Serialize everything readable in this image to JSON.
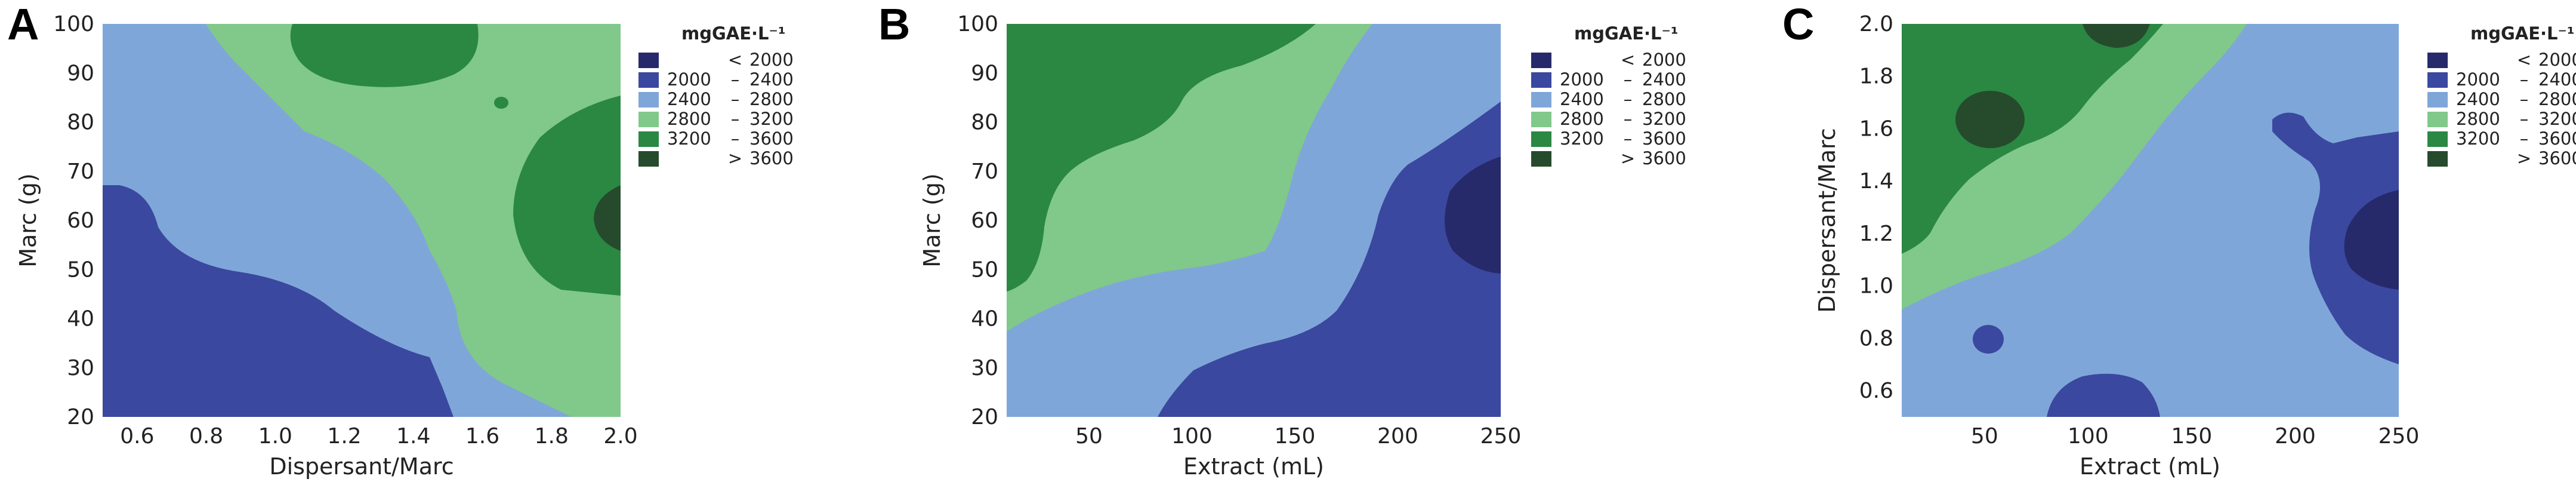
{
  "colors": {
    "lt2000": "#262a6b",
    "b2000_2400": "#3a48a0",
    "b2400_2800": "#7fa6d8",
    "b2800_3200": "#80c98a",
    "b3200_3600": "#2a8843",
    "gt3600": "#264b2c"
  },
  "legend": {
    "title": "mgGAE·L⁻¹",
    "entries": [
      {
        "lo": "",
        "sep": "<",
        "hi": "2000",
        "color": "#262a6b"
      },
      {
        "lo": "2000",
        "sep": "–",
        "hi": "2400",
        "color": "#3a48a0"
      },
      {
        "lo": "2400",
        "sep": "–",
        "hi": "2800",
        "color": "#7fa6d8"
      },
      {
        "lo": "2800",
        "sep": "–",
        "hi": "3200",
        "color": "#80c98a"
      },
      {
        "lo": "3200",
        "sep": "–",
        "hi": "3600",
        "color": "#2a8843"
      },
      {
        "lo": "",
        "sep": ">",
        "hi": "3600",
        "color": "#264b2c"
      }
    ]
  },
  "chart_data": [
    {
      "panel": "A",
      "type": "contour",
      "xlabel": "Dispersant/Marc",
      "ylabel": "Marc (g)",
      "xlim": [
        0.5,
        2.0
      ],
      "ylim": [
        20,
        100
      ],
      "xticks": [
        "0.6",
        "0.8",
        "1.0",
        "1.2",
        "1.4",
        "1.6",
        "1.8",
        "2.0"
      ],
      "yticks": [
        "20",
        "30",
        "40",
        "50",
        "60",
        "70",
        "80",
        "90",
        "100"
      ],
      "regions": [
        {
          "level": "2000 – 2400",
          "area": "lower-left"
        },
        {
          "level": "2400 – 2800",
          "area": "diagonal band from upper-left to lower-right"
        },
        {
          "level": "2800 – 3200",
          "area": "upper-middle and right"
        },
        {
          "level": "3200 – 3600",
          "area": "top-center and right edge"
        },
        {
          "level": "> 3600",
          "area": "right edge near Marc 60"
        }
      ]
    },
    {
      "panel": "B",
      "type": "contour",
      "xlabel": "Extract (mL)",
      "ylabel": "Marc (g)",
      "xlim": [
        10,
        250
      ],
      "ylim": [
        20,
        100
      ],
      "xticks": [
        "50",
        "100",
        "150",
        "200",
        "250"
      ],
      "yticks": [
        "20",
        "30",
        "40",
        "50",
        "60",
        "70",
        "80",
        "90",
        "100"
      ],
      "regions": [
        {
          "level": "3200 – 3600",
          "area": "upper-left"
        },
        {
          "level": "2800 – 3200",
          "area": "diagonal band left-center"
        },
        {
          "level": "2400 – 2800",
          "area": "central diagonal band"
        },
        {
          "level": "2000 – 2400",
          "area": "lower-right"
        },
        {
          "level": "< 2000",
          "area": "right edge near Marc 60"
        }
      ]
    },
    {
      "panel": "C",
      "type": "contour",
      "xlabel": "Extract (mL)",
      "ylabel": "Dispersant/Marc",
      "xlim": [
        10,
        250
      ],
      "ylim": [
        0.5,
        2.0
      ],
      "xticks": [
        "50",
        "100",
        "150",
        "200",
        "250"
      ],
      "yticks": [
        "0.6",
        "0.8",
        "1.0",
        "1.2",
        "1.4",
        "1.6",
        "1.8",
        "2.0"
      ],
      "regions": [
        {
          "level": "3200 – 3600",
          "area": "upper-left"
        },
        {
          "level": "> 3600",
          "area": "spots near Extract 55 / ratio 1.7 and Extract 130 / ratio 2.0"
        },
        {
          "level": "2800 – 3200",
          "area": "diagonal band"
        },
        {
          "level": "2400 – 2800",
          "area": "central and lower region"
        },
        {
          "level": "2000 – 2400",
          "area": "right side and small spots at bottom"
        },
        {
          "level": "< 2000",
          "area": "right edge near ratio 1.2"
        }
      ]
    }
  ]
}
